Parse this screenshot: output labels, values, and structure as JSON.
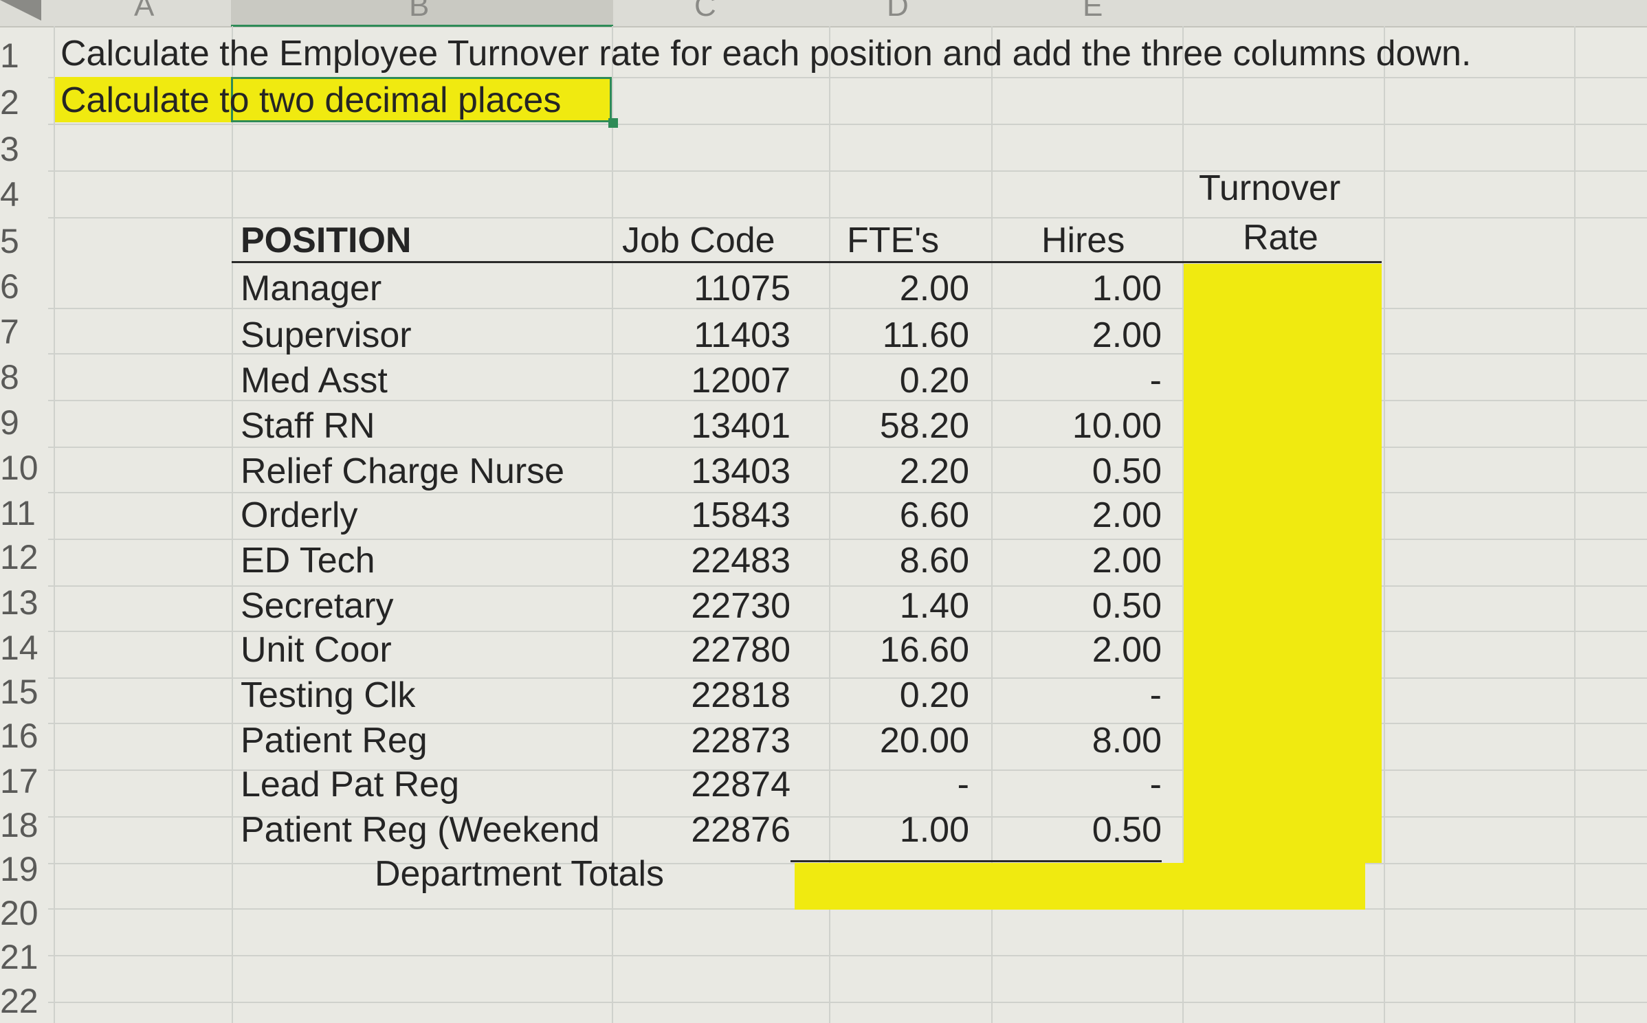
{
  "column_letters": [
    "A",
    "B",
    "C",
    "D",
    "E"
  ],
  "row_numbers": [
    "1",
    "2",
    "3",
    "4",
    "5",
    "6",
    "7",
    "8",
    "9",
    "10",
    "11",
    "12",
    "13",
    "14",
    "15",
    "16",
    "17",
    "18",
    "19",
    "20",
    "21",
    "22"
  ],
  "instructions": {
    "line1": "Calculate the Employee Turnover rate for each position and add the three columns down.",
    "line2": "Calculate to two decimal places"
  },
  "table": {
    "headers": {
      "position": "POSITION",
      "job_code": "Job Code",
      "ftes": "FTE's",
      "hires": "Hires",
      "turnover_line1": "Turnover",
      "turnover_line2": "Rate"
    },
    "rows": [
      {
        "position": "Manager",
        "job_code": "11075",
        "ftes": "2.00",
        "hires": "1.00"
      },
      {
        "position": "Supervisor",
        "job_code": "11403",
        "ftes": "11.60",
        "hires": "2.00"
      },
      {
        "position": "Med Asst",
        "job_code": "12007",
        "ftes": "0.20",
        "hires": "-"
      },
      {
        "position": "Staff RN",
        "job_code": "13401",
        "ftes": "58.20",
        "hires": "10.00"
      },
      {
        "position": "Relief Charge Nurse",
        "job_code": "13403",
        "ftes": "2.20",
        "hires": "0.50"
      },
      {
        "position": "Orderly",
        "job_code": "15843",
        "ftes": "6.60",
        "hires": "2.00"
      },
      {
        "position": "ED Tech",
        "job_code": "22483",
        "ftes": "8.60",
        "hires": "2.00"
      },
      {
        "position": "Secretary",
        "job_code": "22730",
        "ftes": "1.40",
        "hires": "0.50"
      },
      {
        "position": "Unit Coor",
        "job_code": "22780",
        "ftes": "16.60",
        "hires": "2.00"
      },
      {
        "position": "Testing Clk",
        "job_code": "22818",
        "ftes": "0.20",
        "hires": "-"
      },
      {
        "position": "Patient Reg",
        "job_code": "22873",
        "ftes": "20.00",
        "hires": "8.00"
      },
      {
        "position": "Lead Pat Reg",
        "job_code": "22874",
        "ftes": "-",
        "hires": "-"
      },
      {
        "position": "Patient Reg (Weekend",
        "job_code": "22876",
        "ftes": "1.00",
        "hires": "0.50"
      }
    ],
    "totals_label": "Department Totals"
  },
  "colors": {
    "highlight_yellow": "#f0ea10",
    "selection_green": "#2e8b57",
    "sheet_background": "#e9e9e3"
  }
}
